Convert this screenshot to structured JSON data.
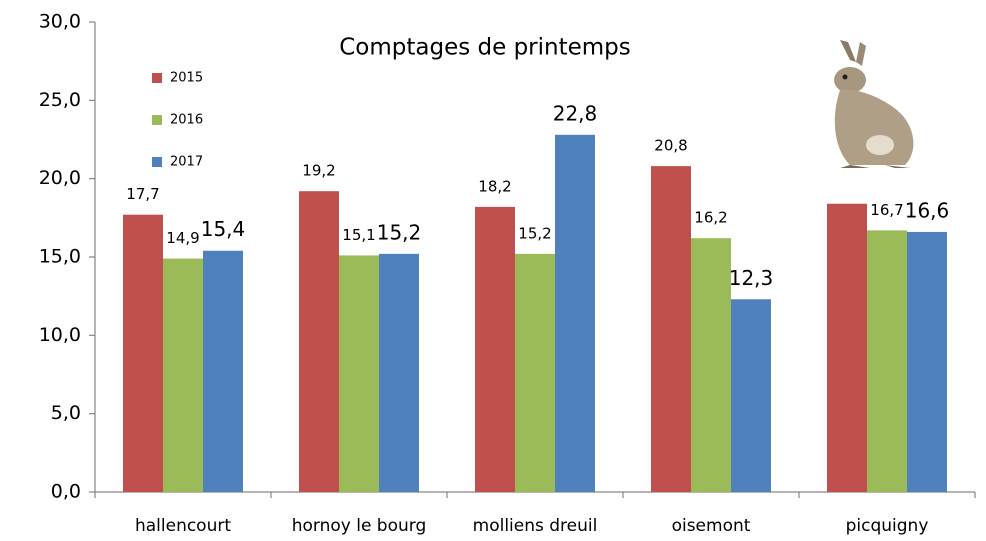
{
  "chart_data": {
    "type": "bar",
    "title": "Comptages de printemps",
    "categories": [
      "hallencourt",
      "hornoy le bourg",
      "molliens dreuil",
      "oisemont",
      "picquigny"
    ],
    "series": [
      {
        "name": "2015",
        "color": "#c0504d",
        "values": [
          17.7,
          19.2,
          18.2,
          20.8,
          18.4
        ],
        "value_labels": [
          "17,7",
          "19,2",
          "18,2",
          "20,8",
          null
        ]
      },
      {
        "name": "2016",
        "color": "#9bbb59",
        "values": [
          14.9,
          15.1,
          15.2,
          16.2,
          16.7
        ],
        "value_labels": [
          "14,9",
          "15,1",
          "15,2",
          "16,2",
          "16,7"
        ]
      },
      {
        "name": "2017",
        "color": "#4f81bd",
        "values": [
          15.4,
          15.2,
          22.8,
          12.3,
          16.6
        ],
        "value_labels": [
          "15,4",
          "15,2",
          "22,8",
          "12,3",
          "16,6"
        ]
      }
    ],
    "ylim": [
      0,
      30
    ],
    "yticks": [
      {
        "value": 0,
        "label": "0,0"
      },
      {
        "value": 5,
        "label": "5,0"
      },
      {
        "value": 10,
        "label": "10,0"
      },
      {
        "value": 15,
        "label": "15,0"
      },
      {
        "value": 20,
        "label": "20,0"
      },
      {
        "value": 25,
        "label": "25,0"
      },
      {
        "value": 30,
        "label": "30,0"
      }
    ],
    "legend": "top-left"
  }
}
